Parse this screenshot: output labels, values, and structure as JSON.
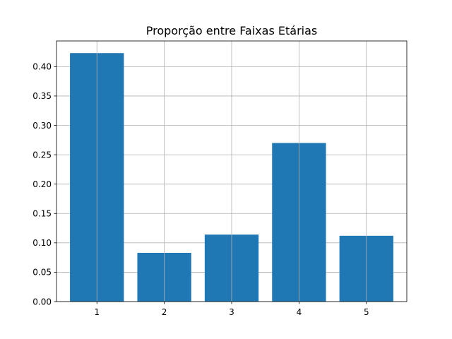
{
  "chart_data": {
    "type": "bar",
    "title": "Proporção entre Faixas Etárias",
    "xlabel": "",
    "ylabel": "",
    "categories": [
      "1",
      "2",
      "3",
      "4",
      "5"
    ],
    "values": [
      0.423,
      0.083,
      0.114,
      0.27,
      0.112
    ],
    "ylim": [
      0,
      0.4437
    ],
    "yticks": [
      "0.00",
      "0.05",
      "0.10",
      "0.15",
      "0.20",
      "0.25",
      "0.30",
      "0.35",
      "0.40"
    ],
    "grid": true,
    "legend": "none",
    "bar_color": "#1f77b4",
    "grid_color": "#b0b0b0"
  }
}
